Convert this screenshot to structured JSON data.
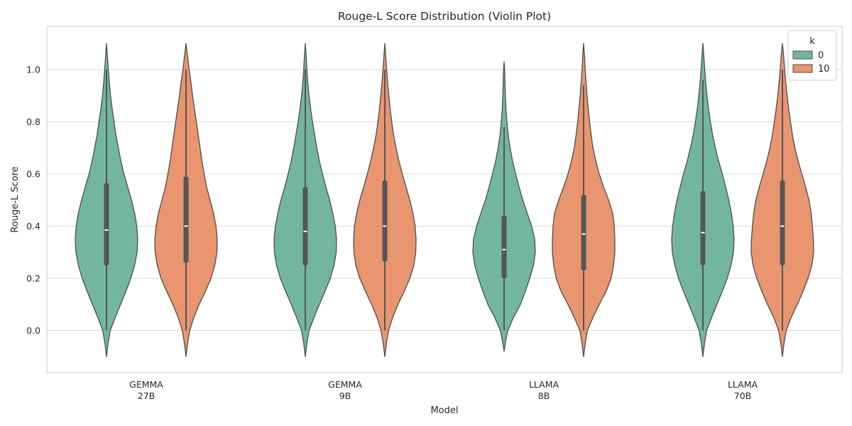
{
  "chart_data": {
    "type": "violin",
    "title": "Rouge-L Score Distribution (Violin Plot)",
    "xlabel": "Model",
    "ylabel": "Rouge-L Score",
    "ylim": [
      -0.16,
      1.16
    ],
    "yticks": [
      0.0,
      0.2,
      0.4,
      0.6,
      0.8,
      1.0
    ],
    "ytick_labels": [
      "0.0",
      "0.2",
      "0.4",
      "0.6",
      "0.8",
      "1.0"
    ],
    "grid": "horizontal",
    "categories": [
      {
        "line1": "GEMMA",
        "line2": "27B"
      },
      {
        "line1": "GEMMA",
        "line2": "9B"
      },
      {
        "line1": "LLAMA",
        "line2": "8B"
      },
      {
        "line1": "LLAMA",
        "line2": "70B"
      }
    ],
    "legend": {
      "title": "k",
      "position": "top-right"
    },
    "series": [
      {
        "name": "0",
        "color": "#72b6a1",
        "stats": [
          {
            "min": 0.0,
            "q1": 0.25,
            "median": 0.385,
            "q3": 0.565,
            "max": 1.0,
            "kde_min": -0.1,
            "kde_max": 1.1,
            "profile": [
              [
                -0.1,
                0.0
              ],
              [
                -0.05,
                0.05
              ],
              [
                0.0,
                0.12
              ],
              [
                0.05,
                0.28
              ],
              [
                0.1,
                0.45
              ],
              [
                0.15,
                0.62
              ],
              [
                0.2,
                0.78
              ],
              [
                0.25,
                0.9
              ],
              [
                0.3,
                0.98
              ],
              [
                0.35,
                1.0
              ],
              [
                0.4,
                0.97
              ],
              [
                0.45,
                0.9
              ],
              [
                0.5,
                0.8
              ],
              [
                0.55,
                0.68
              ],
              [
                0.6,
                0.56
              ],
              [
                0.65,
                0.46
              ],
              [
                0.7,
                0.38
              ],
              [
                0.75,
                0.3
              ],
              [
                0.8,
                0.24
              ],
              [
                0.85,
                0.18
              ],
              [
                0.9,
                0.13
              ],
              [
                0.95,
                0.09
              ],
              [
                1.0,
                0.06
              ],
              [
                1.05,
                0.03
              ],
              [
                1.1,
                0.0
              ]
            ]
          },
          {
            "min": 0.0,
            "q1": 0.25,
            "median": 0.38,
            "q3": 0.55,
            "max": 1.0,
            "kde_min": -0.1,
            "kde_max": 1.1,
            "profile": [
              [
                -0.1,
                0.0
              ],
              [
                -0.05,
                0.05
              ],
              [
                0.0,
                0.12
              ],
              [
                0.05,
                0.28
              ],
              [
                0.1,
                0.45
              ],
              [
                0.15,
                0.63
              ],
              [
                0.2,
                0.8
              ],
              [
                0.25,
                0.92
              ],
              [
                0.3,
                0.99
              ],
              [
                0.35,
                1.0
              ],
              [
                0.4,
                0.96
              ],
              [
                0.45,
                0.88
              ],
              [
                0.5,
                0.78
              ],
              [
                0.55,
                0.66
              ],
              [
                0.6,
                0.55
              ],
              [
                0.65,
                0.45
              ],
              [
                0.7,
                0.37
              ],
              [
                0.75,
                0.3
              ],
              [
                0.8,
                0.23
              ],
              [
                0.85,
                0.17
              ],
              [
                0.9,
                0.12
              ],
              [
                0.95,
                0.08
              ],
              [
                1.0,
                0.05
              ],
              [
                1.05,
                0.03
              ],
              [
                1.1,
                0.0
              ]
            ]
          },
          {
            "min": 0.0,
            "q1": 0.2,
            "median": 0.31,
            "q3": 0.44,
            "max": 0.78,
            "kde_min": -0.08,
            "kde_max": 1.03,
            "profile": [
              [
                -0.08,
                0.0
              ],
              [
                -0.04,
                0.05
              ],
              [
                0.0,
                0.12
              ],
              [
                0.05,
                0.3
              ],
              [
                0.1,
                0.52
              ],
              [
                0.15,
                0.68
              ],
              [
                0.2,
                0.82
              ],
              [
                0.25,
                0.94
              ],
              [
                0.3,
                1.0
              ],
              [
                0.35,
                0.98
              ],
              [
                0.4,
                0.88
              ],
              [
                0.45,
                0.74
              ],
              [
                0.5,
                0.6
              ],
              [
                0.55,
                0.48
              ],
              [
                0.6,
                0.37
              ],
              [
                0.65,
                0.27
              ],
              [
                0.7,
                0.19
              ],
              [
                0.75,
                0.13
              ],
              [
                0.8,
                0.09
              ],
              [
                0.85,
                0.06
              ],
              [
                0.9,
                0.04
              ],
              [
                0.95,
                0.03
              ],
              [
                1.0,
                0.015
              ],
              [
                1.03,
                0.0
              ]
            ]
          },
          {
            "min": 0.0,
            "q1": 0.25,
            "median": 0.375,
            "q3": 0.535,
            "max": 0.96,
            "kde_min": -0.1,
            "kde_max": 1.1,
            "profile": [
              [
                -0.1,
                0.0
              ],
              [
                -0.05,
                0.05
              ],
              [
                0.0,
                0.12
              ],
              [
                0.05,
                0.28
              ],
              [
                0.1,
                0.45
              ],
              [
                0.15,
                0.62
              ],
              [
                0.2,
                0.78
              ],
              [
                0.25,
                0.9
              ],
              [
                0.3,
                0.98
              ],
              [
                0.35,
                1.0
              ],
              [
                0.4,
                0.97
              ],
              [
                0.45,
                0.91
              ],
              [
                0.5,
                0.83
              ],
              [
                0.55,
                0.73
              ],
              [
                0.6,
                0.62
              ],
              [
                0.65,
                0.5
              ],
              [
                0.7,
                0.4
              ],
              [
                0.75,
                0.31
              ],
              [
                0.8,
                0.24
              ],
              [
                0.85,
                0.18
              ],
              [
                0.9,
                0.13
              ],
              [
                0.95,
                0.09
              ],
              [
                1.0,
                0.06
              ],
              [
                1.05,
                0.03
              ],
              [
                1.1,
                0.0
              ]
            ]
          }
        ]
      },
      {
        "name": "10",
        "color": "#e9956f",
        "stats": [
          {
            "min": 0.0,
            "q1": 0.26,
            "median": 0.4,
            "q3": 0.59,
            "max": 1.0,
            "kde_min": -0.1,
            "kde_max": 1.1,
            "profile": [
              [
                -0.1,
                0.0
              ],
              [
                -0.05,
                0.05
              ],
              [
                0.0,
                0.12
              ],
              [
                0.05,
                0.25
              ],
              [
                0.1,
                0.42
              ],
              [
                0.15,
                0.62
              ],
              [
                0.2,
                0.8
              ],
              [
                0.25,
                0.92
              ],
              [
                0.3,
                0.99
              ],
              [
                0.35,
                1.0
              ],
              [
                0.4,
                0.96
              ],
              [
                0.45,
                0.88
              ],
              [
                0.5,
                0.77
              ],
              [
                0.55,
                0.66
              ],
              [
                0.6,
                0.58
              ],
              [
                0.65,
                0.51
              ],
              [
                0.7,
                0.45
              ],
              [
                0.75,
                0.39
              ],
              [
                0.8,
                0.33
              ],
              [
                0.85,
                0.27
              ],
              [
                0.9,
                0.21
              ],
              [
                0.95,
                0.16
              ],
              [
                1.0,
                0.1
              ],
              [
                1.05,
                0.05
              ],
              [
                1.1,
                0.0
              ]
            ]
          },
          {
            "min": 0.0,
            "q1": 0.265,
            "median": 0.4,
            "q3": 0.575,
            "max": 1.0,
            "kde_min": -0.1,
            "kde_max": 1.1,
            "profile": [
              [
                -0.1,
                0.0
              ],
              [
                -0.05,
                0.05
              ],
              [
                0.0,
                0.12
              ],
              [
                0.05,
                0.25
              ],
              [
                0.1,
                0.42
              ],
              [
                0.15,
                0.62
              ],
              [
                0.2,
                0.8
              ],
              [
                0.25,
                0.93
              ],
              [
                0.3,
                0.99
              ],
              [
                0.35,
                1.0
              ],
              [
                0.4,
                0.97
              ],
              [
                0.45,
                0.9
              ],
              [
                0.5,
                0.8
              ],
              [
                0.55,
                0.68
              ],
              [
                0.6,
                0.56
              ],
              [
                0.65,
                0.45
              ],
              [
                0.7,
                0.36
              ],
              [
                0.75,
                0.28
              ],
              [
                0.8,
                0.22
              ],
              [
                0.85,
                0.17
              ],
              [
                0.9,
                0.13
              ],
              [
                0.95,
                0.09
              ],
              [
                1.0,
                0.06
              ],
              [
                1.05,
                0.03
              ],
              [
                1.1,
                0.0
              ]
            ]
          },
          {
            "min": 0.0,
            "q1": 0.23,
            "median": 0.37,
            "q3": 0.52,
            "max": 0.94,
            "kde_min": -0.1,
            "kde_max": 1.1,
            "profile": [
              [
                -0.1,
                0.0
              ],
              [
                -0.05,
                0.05
              ],
              [
                0.0,
                0.12
              ],
              [
                0.05,
                0.3
              ],
              [
                0.1,
                0.5
              ],
              [
                0.15,
                0.72
              ],
              [
                0.2,
                0.88
              ],
              [
                0.25,
                0.96
              ],
              [
                0.3,
                1.0
              ],
              [
                0.35,
                1.0
              ],
              [
                0.4,
                0.98
              ],
              [
                0.45,
                0.93
              ],
              [
                0.5,
                0.8
              ],
              [
                0.55,
                0.64
              ],
              [
                0.6,
                0.5
              ],
              [
                0.65,
                0.39
              ],
              [
                0.7,
                0.3
              ],
              [
                0.75,
                0.24
              ],
              [
                0.8,
                0.19
              ],
              [
                0.85,
                0.15
              ],
              [
                0.9,
                0.11
              ],
              [
                0.95,
                0.08
              ],
              [
                1.0,
                0.05
              ],
              [
                1.05,
                0.03
              ],
              [
                1.1,
                0.0
              ]
            ]
          },
          {
            "min": 0.0,
            "q1": 0.25,
            "median": 0.4,
            "q3": 0.575,
            "max": 1.0,
            "kde_min": -0.1,
            "kde_max": 1.1,
            "profile": [
              [
                -0.1,
                0.0
              ],
              [
                -0.05,
                0.05
              ],
              [
                0.0,
                0.12
              ],
              [
                0.05,
                0.28
              ],
              [
                0.1,
                0.48
              ],
              [
                0.15,
                0.66
              ],
              [
                0.2,
                0.82
              ],
              [
                0.25,
                0.94
              ],
              [
                0.3,
                1.0
              ],
              [
                0.35,
                0.99
              ],
              [
                0.4,
                0.96
              ],
              [
                0.45,
                0.92
              ],
              [
                0.5,
                0.85
              ],
              [
                0.55,
                0.74
              ],
              [
                0.6,
                0.62
              ],
              [
                0.65,
                0.5
              ],
              [
                0.7,
                0.4
              ],
              [
                0.75,
                0.32
              ],
              [
                0.8,
                0.26
              ],
              [
                0.85,
                0.2
              ],
              [
                0.9,
                0.15
              ],
              [
                0.95,
                0.11
              ],
              [
                1.0,
                0.07
              ],
              [
                1.05,
                0.04
              ],
              [
                1.1,
                0.0
              ]
            ]
          }
        ]
      }
    ]
  }
}
